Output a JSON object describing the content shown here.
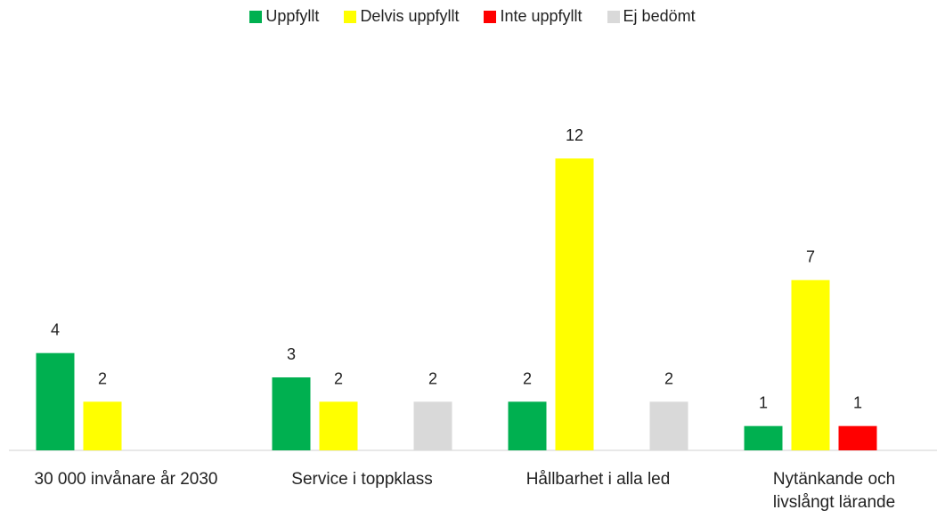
{
  "chart_data": {
    "type": "bar",
    "categories": [
      "30 000 invånare år 2030",
      "Service i toppklass",
      "Hållbarhet i alla led",
      "Nytänkande och livslångt lärande"
    ],
    "series": [
      {
        "name": "Uppfyllt",
        "color": "#00b050",
        "values": [
          4,
          3,
          2,
          1
        ]
      },
      {
        "name": "Delvis uppfyllt",
        "color": "#ffff00",
        "values": [
          2,
          2,
          12,
          7
        ]
      },
      {
        "name": "Inte uppfyllt",
        "color": "#ff0000",
        "values": [
          null,
          null,
          null,
          1
        ]
      },
      {
        "name": "Ej bedömt",
        "color": "#d9d9d9",
        "values": [
          null,
          2,
          2,
          null
        ]
      }
    ],
    "ylim": [
      0,
      14
    ],
    "legend": "top"
  }
}
